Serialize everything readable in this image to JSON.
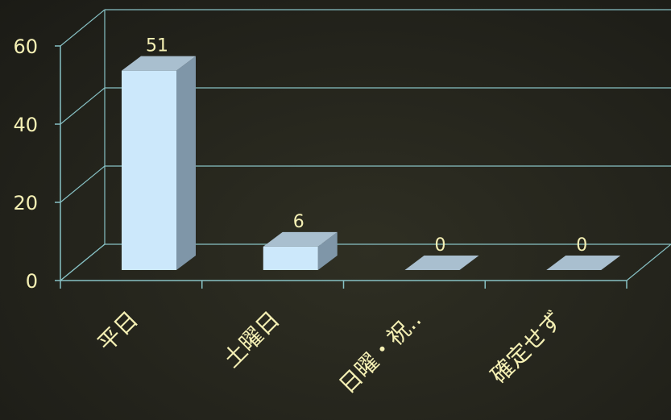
{
  "chart_data": {
    "type": "bar",
    "title": "",
    "xlabel": "",
    "ylabel": "",
    "categories": [
      "平日",
      "土曜日",
      "日曜・祝..",
      "確定せず"
    ],
    "values": [
      51,
      6,
      0,
      0
    ],
    "data_labels": [
      "51",
      "6",
      "0",
      "0"
    ],
    "ylim": [
      0,
      60
    ],
    "yticks": [
      "0",
      "20",
      "40",
      "60"
    ],
    "grid": true,
    "three_d": true,
    "legend": "none",
    "colors": {
      "bar_front": "#cce8fb",
      "bar_side": "#7f96a8",
      "bar_top": "#a9bfcf",
      "grid": "#87c1c4",
      "text": "#f5f0b4"
    }
  }
}
